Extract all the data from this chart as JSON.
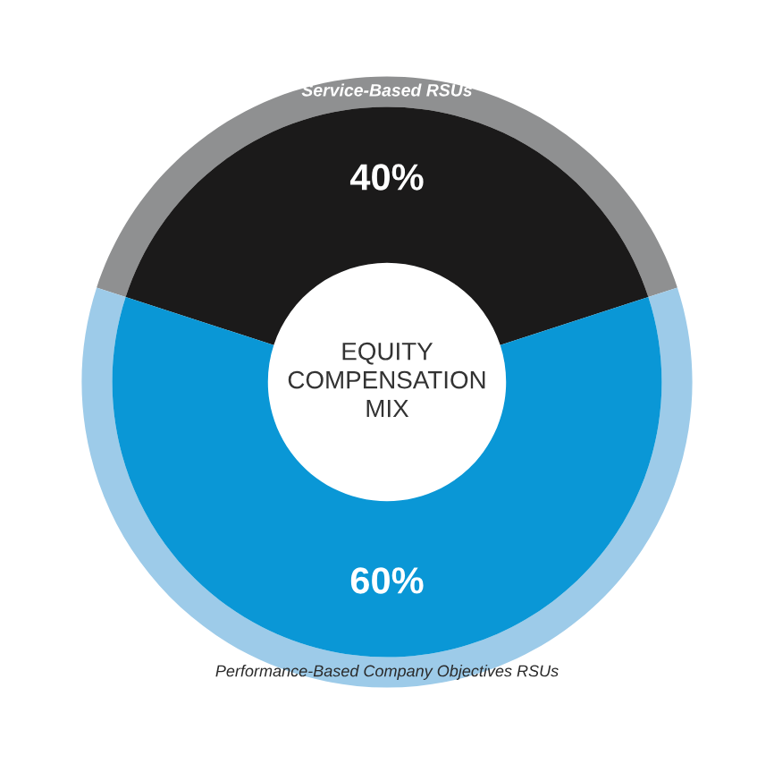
{
  "chart_data": {
    "type": "donut",
    "categories": [
      "Service-Based RSUs",
      "Performance-Based Company Objectives RSUs"
    ],
    "series": [
      {
        "values": [
          40,
          60
        ],
        "colors": [
          "#8f9091",
          "#9dcbe9"
        ]
      },
      {
        "values": [
          40,
          60
        ],
        "colors": [
          "#1b1a1a",
          "#0a97d6"
        ],
        "value_labels": [
          "40%",
          "60%"
        ]
      }
    ],
    "annotations": [
      "EQUITY\nCOMPENSATION\nMIX"
    ]
  }
}
